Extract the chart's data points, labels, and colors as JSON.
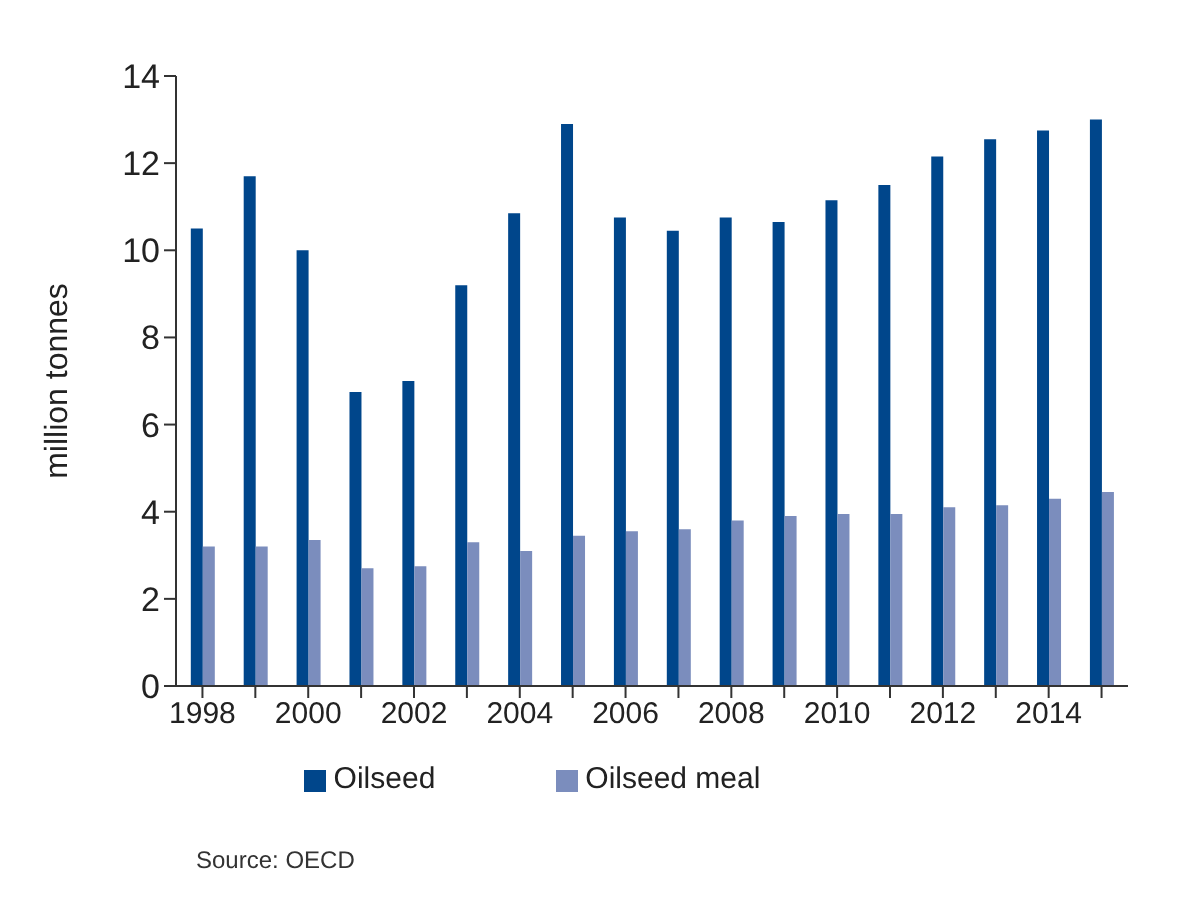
{
  "chart_data": {
    "type": "bar",
    "ylabel": "million tonnes",
    "categories": [
      "1998",
      null,
      "2000",
      null,
      "2002",
      null,
      "2004",
      null,
      "2006",
      null,
      "2008",
      null,
      "2010",
      null,
      "2012",
      null,
      "2014",
      null
    ],
    "series": [
      {
        "name": "Oilseed",
        "color": "#00468b",
        "values": [
          10.5,
          11.7,
          10.0,
          6.75,
          7.0,
          9.2,
          10.85,
          12.9,
          10.75,
          10.45,
          10.75,
          10.65,
          11.15,
          11.5,
          12.15,
          12.55,
          12.75,
          13.0
        ]
      },
      {
        "name": "Oilseed meal",
        "color": "#7b8dbd",
        "values": [
          3.2,
          3.2,
          3.35,
          2.7,
          2.75,
          3.3,
          3.1,
          3.45,
          3.55,
          3.6,
          3.8,
          3.9,
          3.95,
          3.95,
          4.1,
          4.15,
          4.3,
          4.45
        ]
      }
    ],
    "ylim": [
      0,
      14
    ],
    "yticks": [
      0,
      2,
      4,
      6,
      8,
      10,
      12,
      14
    ],
    "grid": false,
    "legend": "bottom",
    "annotations": [
      "Source: OECD"
    ]
  }
}
